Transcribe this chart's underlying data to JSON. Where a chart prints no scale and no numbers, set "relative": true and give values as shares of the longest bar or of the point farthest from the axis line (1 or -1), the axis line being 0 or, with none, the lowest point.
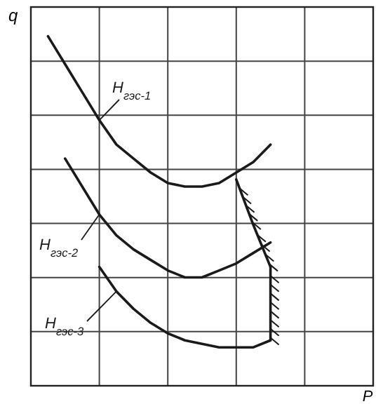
{
  "chart_data": {
    "type": "line",
    "relative": true,
    "xlabel": "P",
    "ylabel": "q",
    "grid": true,
    "marker": "none",
    "line_style": "solid",
    "categories": [
      null,
      null,
      null,
      null,
      null,
      null,
      null,
      null,
      null,
      null,
      null,
      null,
      null,
      null,
      null,
      null,
      null,
      null,
      null,
      null,
      null
    ],
    "series": [
      {
        "name": "H$_{гэс-1}$",
        "color": "#1a1a1a",
        "values": [
          null,
          1,
          0.92,
          0.84,
          0.76,
          0.69,
          0.65,
          0.61,
          0.58,
          0.57,
          0.57,
          0.58,
          0.61,
          0.64,
          0.69,
          null,
          null,
          null,
          null,
          null,
          null
        ]
      },
      {
        "name": "H$_{гэс-2}$",
        "color": "#1a1a1a",
        "values": [
          null,
          null,
          0.65,
          0.57,
          0.49,
          0.43,
          0.39,
          0.36,
          0.33,
          0.31,
          0.31,
          0.33,
          0.35,
          0.38,
          0.41,
          null,
          null,
          null,
          null,
          null,
          null
        ]
      },
      {
        "name": "H$_{гэс-3}$",
        "color": "#1a1a1a",
        "values": [
          null,
          null,
          null,
          null,
          0.34,
          0.27,
          0.22,
          0.18,
          0.15,
          0.13,
          0.12,
          0.11,
          0.11,
          0.11,
          0.13,
          null,
          null,
          null,
          null,
          null,
          null
        ]
      },
      {
        "color": "#1a1a1a",
        "values": [
          null,
          null,
          null,
          null,
          null,
          null,
          null,
          null,
          null,
          null,
          null,
          null,
          0.59,
          0.46,
          0.34,
          null,
          null,
          null,
          null,
          null,
          null
        ]
      }
    ]
  }
}
